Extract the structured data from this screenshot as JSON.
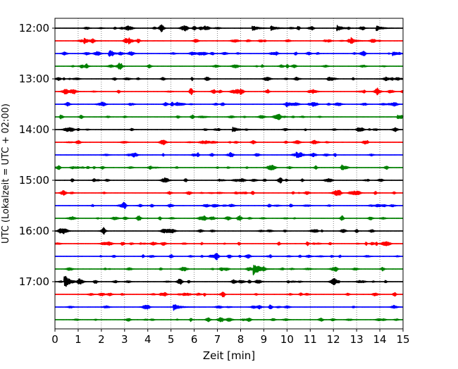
{
  "chart_data": {
    "type": "line",
    "title": "",
    "xlabel": "Zeit  [min]",
    "ylabel": "UTC (Lokalzeit = UTC + 02:00)",
    "xlim": [
      0,
      15
    ],
    "x_ticks": [
      0,
      1,
      2,
      3,
      4,
      5,
      6,
      7,
      8,
      9,
      10,
      11,
      12,
      13,
      14,
      15
    ],
    "x_tick_labels": [
      "0",
      "1",
      "2",
      "3",
      "4",
      "5",
      "6",
      "7",
      "8",
      "9",
      "10",
      "11",
      "12",
      "13",
      "14",
      "15"
    ],
    "y_tick_labels": [
      "12:00",
      "13:00",
      "14:00",
      "15:00",
      "16:00",
      "17:00"
    ],
    "y_tick_rows": [
      0,
      4,
      8,
      12,
      16,
      20
    ],
    "grid": {
      "vertical": true,
      "style": "dotted"
    },
    "legend": "none",
    "colors": [
      "#000000",
      "#ff0000",
      "#0000ff",
      "#008000"
    ],
    "rows_count": 24,
    "minutes_per_row": 15,
    "events": [
      {
        "row": 0,
        "minute": 8.55,
        "amp": 0.3
      },
      {
        "row": 0,
        "minute": 9.35,
        "amp": 0.3
      },
      {
        "row": 0,
        "minute": 12.2,
        "amp": 0.35
      },
      {
        "row": 0,
        "minute": 13.9,
        "amp": 0.3
      },
      {
        "row": 1,
        "minute": 1.3,
        "amp": 0.3
      },
      {
        "row": 1,
        "minute": 3.2,
        "amp": 0.25
      },
      {
        "row": 1,
        "minute": 12.8,
        "amp": 0.25
      },
      {
        "row": 2,
        "minute": 2.35,
        "amp": 0.3
      },
      {
        "row": 2,
        "minute": 14.6,
        "amp": 0.25
      },
      {
        "row": 5,
        "minute": 0.45,
        "amp": 0.25
      },
      {
        "row": 6,
        "minute": 10.0,
        "amp": 0.3
      },
      {
        "row": 7,
        "minute": 14.8,
        "amp": 0.2
      },
      {
        "row": 8,
        "minute": 7.7,
        "amp": 0.3
      },
      {
        "row": 10,
        "minute": 10.45,
        "amp": 0.3
      },
      {
        "row": 19,
        "minute": 8.6,
        "amp": 0.75
      },
      {
        "row": 20,
        "minute": 0.45,
        "amp": 0.9
      },
      {
        "row": 22,
        "minute": 5.15,
        "amp": 0.45
      }
    ]
  }
}
